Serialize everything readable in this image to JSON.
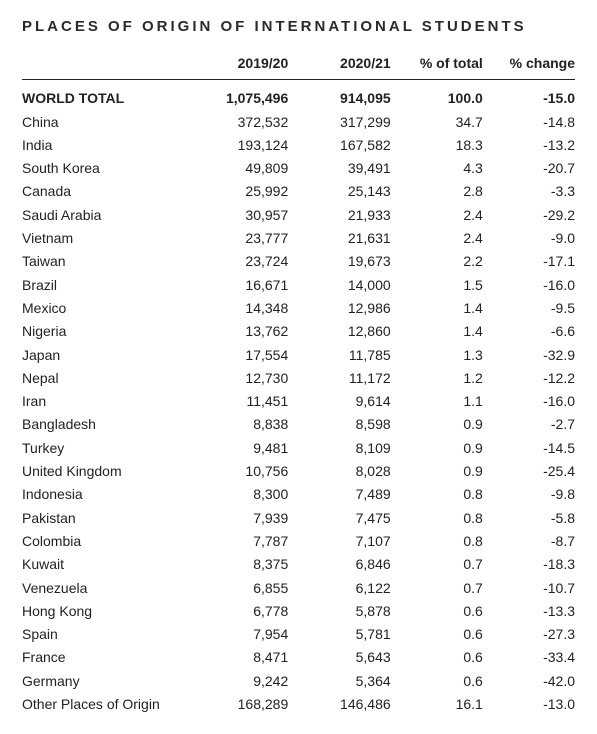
{
  "title": "PLACES OF ORIGIN OF INTERNATIONAL STUDENTS",
  "columns": {
    "name": "",
    "y1": "2019/20",
    "y2": "2020/21",
    "pct": "% of total",
    "chg": "% change"
  },
  "rows": [
    {
      "name": "WORLD TOTAL",
      "y1": "1,075,496",
      "y2": "914,095",
      "pct": "100.0",
      "chg": "-15.0",
      "bold": true
    },
    {
      "name": "China",
      "y1": "372,532",
      "y2": "317,299",
      "pct": "34.7",
      "chg": "-14.8"
    },
    {
      "name": "India",
      "y1": "193,124",
      "y2": "167,582",
      "pct": "18.3",
      "chg": "-13.2"
    },
    {
      "name": "South Korea",
      "y1": "49,809",
      "y2": "39,491",
      "pct": "4.3",
      "chg": "-20.7"
    },
    {
      "name": "Canada",
      "y1": "25,992",
      "y2": "25,143",
      "pct": "2.8",
      "chg": "-3.3"
    },
    {
      "name": "Saudi Arabia",
      "y1": "30,957",
      "y2": "21,933",
      "pct": "2.4",
      "chg": "-29.2"
    },
    {
      "name": "Vietnam",
      "y1": "23,777",
      "y2": "21,631",
      "pct": "2.4",
      "chg": "-9.0"
    },
    {
      "name": "Taiwan",
      "y1": "23,724",
      "y2": "19,673",
      "pct": "2.2",
      "chg": "-17.1"
    },
    {
      "name": "Brazil",
      "y1": "16,671",
      "y2": "14,000",
      "pct": "1.5",
      "chg": "-16.0"
    },
    {
      "name": "Mexico",
      "y1": "14,348",
      "y2": "12,986",
      "pct": "1.4",
      "chg": "-9.5"
    },
    {
      "name": "Nigeria",
      "y1": "13,762",
      "y2": "12,860",
      "pct": "1.4",
      "chg": "-6.6"
    },
    {
      "name": "Japan",
      "y1": "17,554",
      "y2": "11,785",
      "pct": "1.3",
      "chg": "-32.9"
    },
    {
      "name": "Nepal",
      "y1": "12,730",
      "y2": "11,172",
      "pct": "1.2",
      "chg": "-12.2"
    },
    {
      "name": "Iran",
      "y1": "11,451",
      "y2": "9,614",
      "pct": "1.1",
      "chg": "-16.0"
    },
    {
      "name": "Bangladesh",
      "y1": "8,838",
      "y2": "8,598",
      "pct": "0.9",
      "chg": "-2.7"
    },
    {
      "name": "Turkey",
      "y1": "9,481",
      "y2": "8,109",
      "pct": "0.9",
      "chg": "-14.5"
    },
    {
      "name": "United Kingdom",
      "y1": "10,756",
      "y2": "8,028",
      "pct": "0.9",
      "chg": "-25.4"
    },
    {
      "name": "Indonesia",
      "y1": "8,300",
      "y2": "7,489",
      "pct": "0.8",
      "chg": "-9.8"
    },
    {
      "name": "Pakistan",
      "y1": "7,939",
      "y2": "7,475",
      "pct": "0.8",
      "chg": "-5.8"
    },
    {
      "name": "Colombia",
      "y1": "7,787",
      "y2": "7,107",
      "pct": "0.8",
      "chg": "-8.7"
    },
    {
      "name": "Kuwait",
      "y1": "8,375",
      "y2": "6,846",
      "pct": "0.7",
      "chg": "-18.3"
    },
    {
      "name": "Venezuela",
      "y1": "6,855",
      "y2": "6,122",
      "pct": "0.7",
      "chg": "-10.7"
    },
    {
      "name": "Hong Kong",
      "y1": "6,778",
      "y2": "5,878",
      "pct": "0.6",
      "chg": "-13.3"
    },
    {
      "name": "Spain",
      "y1": "7,954",
      "y2": "5,781",
      "pct": "0.6",
      "chg": "-27.3"
    },
    {
      "name": "France",
      "y1": "8,471",
      "y2": "5,643",
      "pct": "0.6",
      "chg": "-33.4"
    },
    {
      "name": "Germany",
      "y1": "9,242",
      "y2": "5,364",
      "pct": "0.6",
      "chg": "-42.0"
    },
    {
      "name": "Other Places of Origin",
      "y1": "168,289",
      "y2": "146,486",
      "pct": "16.1",
      "chg": "-13.0"
    }
  ]
}
